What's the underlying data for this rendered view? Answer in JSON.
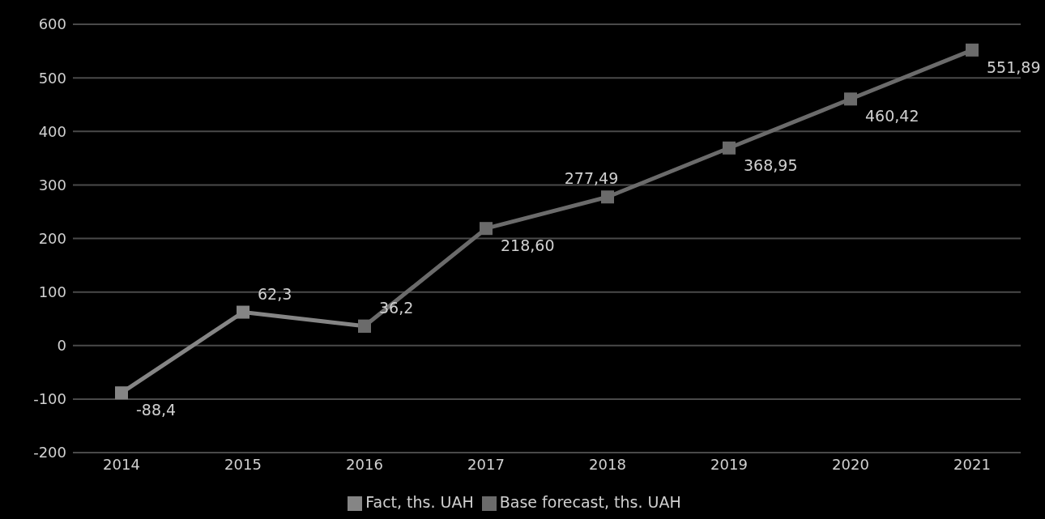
{
  "chart_data": {
    "type": "line",
    "categories": [
      "2014",
      "2015",
      "2016",
      "2017",
      "2018",
      "2019",
      "2020",
      "2021"
    ],
    "series": [
      {
        "name": "Fact, ths. UAH",
        "color": "#858585",
        "values": [
          -88.4,
          62.3,
          36.2,
          null,
          null,
          null,
          null,
          null
        ],
        "value_labels": [
          "-88,4",
          "62,3",
          "36,2",
          null,
          null,
          null,
          null,
          null
        ]
      },
      {
        "name": "Base forecast, ths. UAH",
        "color": "#6b6b6b",
        "values": [
          null,
          null,
          36.2,
          218.6,
          277.49,
          368.95,
          460.42,
          551.89
        ],
        "value_labels": [
          null,
          null,
          null,
          "218,60",
          "277,49",
          "368,95",
          "460,42",
          "551,89"
        ]
      }
    ],
    "ylim": [
      -200,
      600
    ],
    "yticks": [
      -200,
      -100,
      0,
      100,
      200,
      300,
      400,
      500,
      600
    ],
    "grid": "y",
    "legend": "bottom",
    "marker": "square",
    "line_style": "solid"
  }
}
